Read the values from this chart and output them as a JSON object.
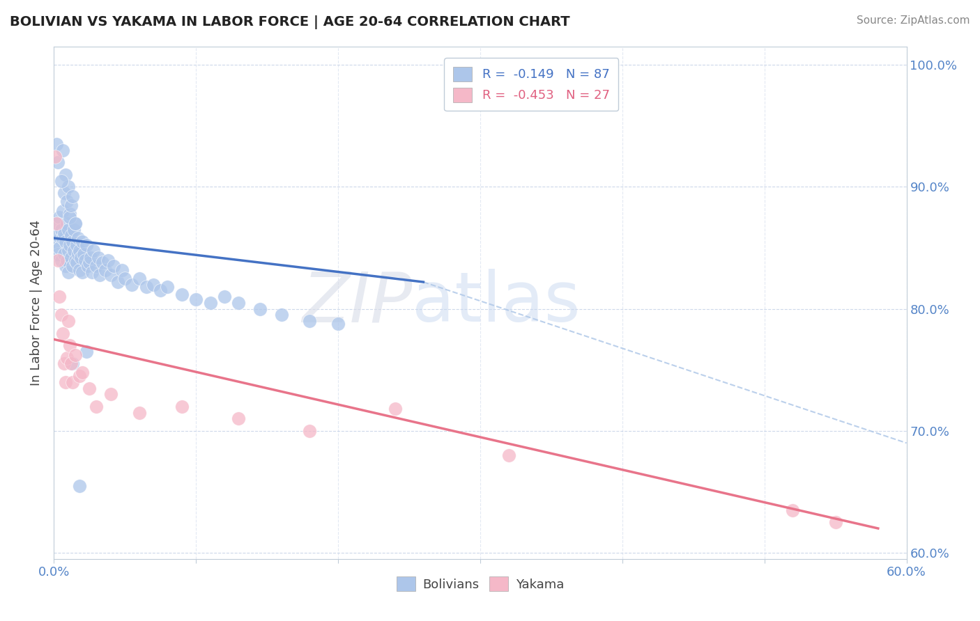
{
  "title": "BOLIVIAN VS YAKAMA IN LABOR FORCE | AGE 20-64 CORRELATION CHART",
  "source": "Source: ZipAtlas.com",
  "ylabel": "In Labor Force | Age 20-64",
  "xlim": [
    0.0,
    0.6
  ],
  "ylim": [
    0.595,
    1.015
  ],
  "blue_color": "#adc6ea",
  "pink_color": "#f5b8c8",
  "blue_line_color": "#4472c4",
  "pink_line_color": "#e8748a",
  "dashed_line_color": "#b0c8e8",
  "legend_text1": "R =  -0.149   N = 87",
  "legend_text2": "R =  -0.453   N = 27",
  "blue_x": [
    0.001,
    0.002,
    0.003,
    0.003,
    0.004,
    0.004,
    0.005,
    0.005,
    0.006,
    0.006,
    0.007,
    0.007,
    0.008,
    0.008,
    0.009,
    0.009,
    0.01,
    0.01,
    0.01,
    0.011,
    0.011,
    0.012,
    0.012,
    0.013,
    0.013,
    0.014,
    0.014,
    0.015,
    0.015,
    0.016,
    0.016,
    0.017,
    0.017,
    0.018,
    0.018,
    0.019,
    0.02,
    0.02,
    0.021,
    0.022,
    0.023,
    0.024,
    0.025,
    0.026,
    0.027,
    0.028,
    0.03,
    0.031,
    0.032,
    0.034,
    0.036,
    0.038,
    0.04,
    0.042,
    0.045,
    0.048,
    0.05,
    0.055,
    0.06,
    0.065,
    0.07,
    0.075,
    0.08,
    0.09,
    0.1,
    0.11,
    0.12,
    0.13,
    0.145,
    0.16,
    0.18,
    0.2,
    0.007,
    0.008,
    0.009,
    0.01,
    0.011,
    0.012,
    0.013,
    0.015,
    0.002,
    0.003,
    0.005,
    0.006,
    0.018,
    0.023,
    0.013
  ],
  "blue_y": [
    0.855,
    0.87,
    0.86,
    0.845,
    0.875,
    0.85,
    0.865,
    0.84,
    0.88,
    0.858,
    0.862,
    0.845,
    0.855,
    0.835,
    0.84,
    0.87,
    0.848,
    0.865,
    0.83,
    0.852,
    0.878,
    0.842,
    0.86,
    0.855,
    0.835,
    0.865,
    0.848,
    0.84,
    0.87,
    0.838,
    0.852,
    0.845,
    0.858,
    0.832,
    0.848,
    0.842,
    0.855,
    0.83,
    0.845,
    0.84,
    0.852,
    0.835,
    0.838,
    0.842,
    0.83,
    0.848,
    0.835,
    0.842,
    0.828,
    0.838,
    0.832,
    0.84,
    0.828,
    0.835,
    0.822,
    0.832,
    0.825,
    0.82,
    0.825,
    0.818,
    0.82,
    0.815,
    0.818,
    0.812,
    0.808,
    0.805,
    0.81,
    0.805,
    0.8,
    0.795,
    0.79,
    0.788,
    0.895,
    0.91,
    0.888,
    0.9,
    0.875,
    0.885,
    0.892,
    0.87,
    0.935,
    0.92,
    0.905,
    0.93,
    0.655,
    0.765,
    0.755
  ],
  "pink_x": [
    0.001,
    0.002,
    0.003,
    0.004,
    0.005,
    0.006,
    0.007,
    0.008,
    0.009,
    0.01,
    0.011,
    0.012,
    0.013,
    0.015,
    0.018,
    0.02,
    0.025,
    0.03,
    0.04,
    0.06,
    0.09,
    0.13,
    0.18,
    0.24,
    0.32,
    0.52,
    0.55
  ],
  "pink_y": [
    0.925,
    0.87,
    0.84,
    0.81,
    0.795,
    0.78,
    0.755,
    0.74,
    0.76,
    0.79,
    0.77,
    0.755,
    0.74,
    0.762,
    0.745,
    0.748,
    0.735,
    0.72,
    0.73,
    0.715,
    0.72,
    0.71,
    0.7,
    0.718,
    0.68,
    0.635,
    0.625
  ],
  "blue_line_x0": 0.0,
  "blue_line_x1": 0.26,
  "blue_line_y0": 0.858,
  "blue_line_y1": 0.822,
  "dash_line_x0": 0.26,
  "dash_line_x1": 0.6,
  "dash_line_y0": 0.822,
  "dash_line_y1": 0.69,
  "pink_line_x0": 0.0,
  "pink_line_x1": 0.58,
  "pink_line_y0": 0.775,
  "pink_line_y1": 0.62
}
